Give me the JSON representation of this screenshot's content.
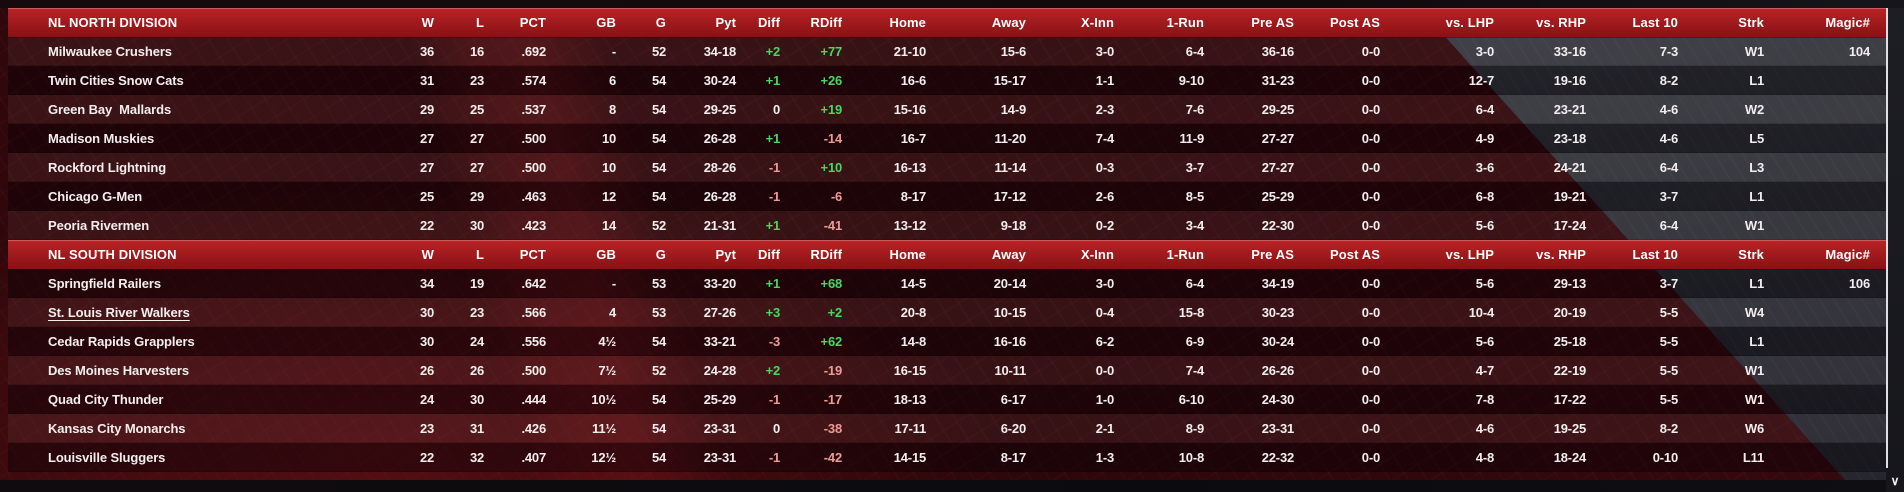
{
  "columns": [
    "W",
    "L",
    "PCT",
    "GB",
    "G",
    "Pyt",
    "Diff",
    "RDiff",
    "Home",
    "Away",
    "X-Inn",
    "1-Run",
    "Pre AS",
    "Post AS",
    "vs. LHP",
    "vs. RHP",
    "Last 10",
    "Strk",
    "Magic#"
  ],
  "divisions": [
    {
      "name": "NL NORTH DIVISION",
      "teams": [
        {
          "name": "Milwaukee Crushers",
          "cells": [
            "36",
            "16",
            ".692",
            "-",
            "52",
            "34-18",
            "+2",
            "+77",
            "21-10",
            "15-6",
            "3-0",
            "6-4",
            "36-16",
            "0-0",
            "3-0",
            "33-16",
            "7-3",
            "W1",
            "104"
          ]
        },
        {
          "name": "Twin Cities Snow Cats",
          "cells": [
            "31",
            "23",
            ".574",
            "6",
            "54",
            "30-24",
            "+1",
            "+26",
            "16-6",
            "15-17",
            "1-1",
            "9-10",
            "31-23",
            "0-0",
            "12-7",
            "19-16",
            "8-2",
            "L1",
            ""
          ]
        },
        {
          "name": "Green Bay  Mallards",
          "cells": [
            "29",
            "25",
            ".537",
            "8",
            "54",
            "29-25",
            "0",
            "+19",
            "15-16",
            "14-9",
            "2-3",
            "7-6",
            "29-25",
            "0-0",
            "6-4",
            "23-21",
            "4-6",
            "W2",
            ""
          ]
        },
        {
          "name": "Madison Muskies",
          "cells": [
            "27",
            "27",
            ".500",
            "10",
            "54",
            "26-28",
            "+1",
            "-14",
            "16-7",
            "11-20",
            "7-4",
            "11-9",
            "27-27",
            "0-0",
            "4-9",
            "23-18",
            "4-6",
            "L5",
            ""
          ]
        },
        {
          "name": "Rockford Lightning",
          "cells": [
            "27",
            "27",
            ".500",
            "10",
            "54",
            "28-26",
            "-1",
            "+10",
            "16-13",
            "11-14",
            "0-3",
            "3-7",
            "27-27",
            "0-0",
            "3-6",
            "24-21",
            "6-4",
            "L3",
            ""
          ]
        },
        {
          "name": "Chicago G-Men",
          "cells": [
            "25",
            "29",
            ".463",
            "12",
            "54",
            "26-28",
            "-1",
            "-6",
            "8-17",
            "17-12",
            "2-6",
            "8-5",
            "25-29",
            "0-0",
            "6-8",
            "19-21",
            "3-7",
            "L1",
            ""
          ]
        },
        {
          "name": "Peoria Rivermen",
          "cells": [
            "22",
            "30",
            ".423",
            "14",
            "52",
            "21-31",
            "+1",
            "-41",
            "13-12",
            "9-18",
            "0-2",
            "3-4",
            "22-30",
            "0-0",
            "5-6",
            "17-24",
            "6-4",
            "W1",
            ""
          ]
        }
      ]
    },
    {
      "name": "NL SOUTH DIVISION",
      "teams": [
        {
          "name": "Springfield Railers",
          "cells": [
            "34",
            "19",
            ".642",
            "-",
            "53",
            "33-20",
            "+1",
            "+68",
            "14-5",
            "20-14",
            "3-0",
            "6-4",
            "34-19",
            "0-0",
            "5-6",
            "29-13",
            "3-7",
            "L1",
            "106"
          ]
        },
        {
          "name": "St. Louis River Walkers",
          "underline": true,
          "cells": [
            "30",
            "23",
            ".566",
            "4",
            "53",
            "27-26",
            "+3",
            "+2",
            "20-8",
            "10-15",
            "0-4",
            "15-8",
            "30-23",
            "0-0",
            "10-4",
            "20-19",
            "5-5",
            "W4",
            ""
          ]
        },
        {
          "name": "Cedar Rapids Grapplers",
          "cells": [
            "30",
            "24",
            ".556",
            "4½",
            "54",
            "33-21",
            "-3",
            "+62",
            "14-8",
            "16-16",
            "6-2",
            "6-9",
            "30-24",
            "0-0",
            "5-6",
            "25-18",
            "5-5",
            "L1",
            ""
          ]
        },
        {
          "name": "Des Moines Harvesters",
          "cells": [
            "26",
            "26",
            ".500",
            "7½",
            "52",
            "24-28",
            "+2",
            "-19",
            "16-15",
            "10-11",
            "0-0",
            "7-4",
            "26-26",
            "0-0",
            "4-7",
            "22-19",
            "5-5",
            "W1",
            ""
          ]
        },
        {
          "name": "Quad City Thunder",
          "cells": [
            "24",
            "30",
            ".444",
            "10½",
            "54",
            "25-29",
            "-1",
            "-17",
            "18-13",
            "6-17",
            "1-0",
            "6-10",
            "24-30",
            "0-0",
            "7-8",
            "17-22",
            "5-5",
            "W1",
            ""
          ]
        },
        {
          "name": "Kansas City Monarchs",
          "cells": [
            "23",
            "31",
            ".426",
            "11½",
            "54",
            "23-31",
            "0",
            "-38",
            "17-11",
            "6-20",
            "2-1",
            "8-9",
            "23-31",
            "0-0",
            "4-6",
            "19-25",
            "8-2",
            "W6",
            ""
          ]
        },
        {
          "name": "Louisville Sluggers",
          "cells": [
            "22",
            "32",
            ".407",
            "12½",
            "54",
            "23-31",
            "-1",
            "-42",
            "14-15",
            "8-17",
            "1-3",
            "10-8",
            "22-32",
            "0-0",
            "4-8",
            "18-24",
            "0-10",
            "L11",
            ""
          ]
        }
      ]
    }
  ],
  "colors": {
    "header_red_top": "#bb2426",
    "header_red_bottom": "#8a1114",
    "positive_diff": "#45d95e",
    "negative_diff": "#f09a97"
  },
  "scrollbar": {
    "down_arrow": "∨"
  }
}
